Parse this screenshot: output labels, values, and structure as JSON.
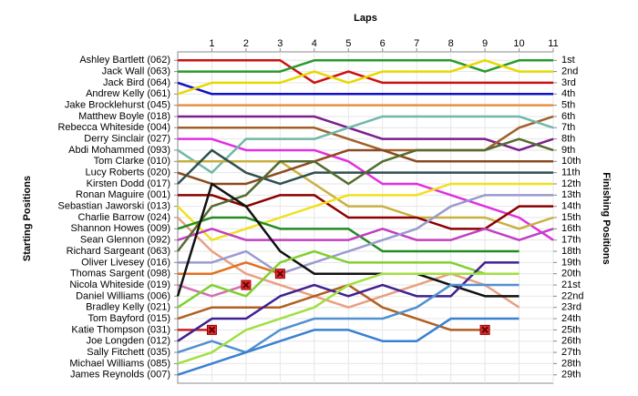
{
  "chart_data": {
    "type": "line",
    "x_label": "Laps",
    "y_label": "Starting Positions",
    "y2_label": "Finishing Positions",
    "x": [
      0,
      1,
      2,
      3,
      4,
      5,
      6,
      7,
      8,
      9,
      10,
      11
    ],
    "xlim": [
      0,
      11
    ],
    "xticks": [
      1,
      2,
      3,
      4,
      5,
      6,
      7,
      8,
      9,
      10,
      11
    ],
    "ylim": [
      29.75,
      0.25
    ],
    "y2lim": [
      29.75,
      0.25
    ],
    "grid": true,
    "yticks": [
      {
        "value": 1,
        "label": "Ashley Bartlett (062)"
      },
      {
        "value": 2,
        "label": "Jack Wall (063)"
      },
      {
        "value": 3,
        "label": "Jack Bird (064)"
      },
      {
        "value": 4,
        "label": "Andrew Kelly (061)"
      },
      {
        "value": 5,
        "label": "Jake Brocklehurst (045)"
      },
      {
        "value": 6,
        "label": "Matthew Boyle (018)"
      },
      {
        "value": 7,
        "label": "Rebecca Whiteside (004)"
      },
      {
        "value": 8,
        "label": "Derry Sinclair (027)"
      },
      {
        "value": 9,
        "label": "Abdi Mohammed (093)"
      },
      {
        "value": 10,
        "label": "Tom Clarke (010)"
      },
      {
        "value": 11,
        "label": "Lucy Roberts (020)"
      },
      {
        "value": 12,
        "label": "Kirsten Dodd (017)"
      },
      {
        "value": 13,
        "label": "Ronan Maguire (001)"
      },
      {
        "value": 14,
        "label": "Sebastian Jaworski (013)"
      },
      {
        "value": 15,
        "label": "Charlie Barrow (024)"
      },
      {
        "value": 16,
        "label": "Shannon Howes (009)"
      },
      {
        "value": 17,
        "label": "Sean Glennon (092)"
      },
      {
        "value": 18,
        "label": "Richard Sargeant (063)"
      },
      {
        "value": 19,
        "label": "Oliver Livesey (016)"
      },
      {
        "value": 20,
        "label": "Thomas Sargent (098)"
      },
      {
        "value": 21,
        "label": "Nicola Whiteside (019)"
      },
      {
        "value": 22,
        "label": "Daniel Williams (006)"
      },
      {
        "value": 23,
        "label": "Bradley Kelly (021)"
      },
      {
        "value": 24,
        "label": "Tom Bayford (015)"
      },
      {
        "value": 25,
        "label": "Katie Thompson (031)"
      },
      {
        "value": 26,
        "label": "Joe Longden (012)"
      },
      {
        "value": 27,
        "label": "Sally Fitchett (035)"
      },
      {
        "value": 28,
        "label": "Michael Williams (085)"
      },
      {
        "value": 29,
        "label": "James Reynolds (007)"
      }
    ],
    "y2ticks": [
      {
        "value": 1,
        "label": "1st"
      },
      {
        "value": 2,
        "label": "2nd"
      },
      {
        "value": 3,
        "label": "3rd"
      },
      {
        "value": 4,
        "label": "4th"
      },
      {
        "value": 5,
        "label": "5th"
      },
      {
        "value": 6,
        "label": "6th"
      },
      {
        "value": 7,
        "label": "7th"
      },
      {
        "value": 8,
        "label": "8th"
      },
      {
        "value": 9,
        "label": "9th"
      },
      {
        "value": 10,
        "label": "10th"
      },
      {
        "value": 11,
        "label": "11th"
      },
      {
        "value": 12,
        "label": "12th"
      },
      {
        "value": 13,
        "label": "13th"
      },
      {
        "value": 14,
        "label": "14th"
      },
      {
        "value": 15,
        "label": "15th"
      },
      {
        "value": 16,
        "label": "16th"
      },
      {
        "value": 17,
        "label": "17th"
      },
      {
        "value": 18,
        "label": "18th"
      },
      {
        "value": 19,
        "label": "19th"
      },
      {
        "value": 20,
        "label": "20th"
      },
      {
        "value": 21,
        "label": "21st"
      },
      {
        "value": 22,
        "label": "22nd"
      },
      {
        "value": 23,
        "label": "23rd"
      },
      {
        "value": 24,
        "label": "24th"
      },
      {
        "value": 25,
        "label": "25th"
      },
      {
        "value": 26,
        "label": "26th"
      },
      {
        "value": 27,
        "label": "27th"
      },
      {
        "value": 28,
        "label": "28th"
      },
      {
        "value": 29,
        "label": "29th"
      }
    ],
    "series": [
      {
        "color": "#cc1111",
        "values": [
          1,
          1,
          1,
          1,
          3,
          2,
          3,
          3,
          3,
          3,
          3,
          3
        ]
      },
      {
        "color": "#2a9a2a",
        "values": [
          2,
          2,
          2,
          2,
          1,
          1,
          1,
          1,
          1,
          2,
          1,
          1
        ]
      },
      {
        "color": "#1010c8",
        "values": [
          3,
          4,
          4,
          4,
          4,
          4,
          4,
          4,
          4,
          4,
          4,
          4
        ]
      },
      {
        "color": "#e8d800",
        "values": [
          4,
          3,
          3,
          3,
          2,
          3,
          2,
          2,
          2,
          1,
          2,
          2
        ]
      },
      {
        "color": "#e89040",
        "values": [
          5,
          5,
          5,
          5,
          5,
          5,
          5,
          5,
          5,
          5,
          5,
          5
        ]
      },
      {
        "color": "#7b1f8b",
        "values": [
          6,
          6,
          6,
          6,
          6,
          7,
          8,
          8,
          8,
          8,
          9,
          8
        ]
      },
      {
        "color": "#a0602a",
        "values": [
          7,
          7,
          7,
          7,
          7,
          8,
          9,
          9,
          9,
          9,
          7,
          6
        ]
      },
      {
        "color": "#e030e0",
        "values": [
          8,
          8,
          9,
          9,
          9,
          10,
          12,
          12,
          13,
          14,
          15,
          17
        ]
      },
      {
        "color": "#70b8a8",
        "values": [
          9,
          11,
          8,
          8,
          8,
          7,
          6,
          6,
          6,
          6,
          6,
          7
        ]
      },
      {
        "color": "#c8b040",
        "values": [
          10,
          10,
          10,
          10,
          12,
          14,
          14,
          15,
          15,
          15,
          16,
          15
        ]
      },
      {
        "color": "#8b4a20",
        "values": [
          11,
          12,
          12,
          11,
          10,
          9,
          9,
          10,
          10,
          10,
          10,
          10
        ]
      },
      {
        "color": "#2f4f4f",
        "values": [
          12,
          9,
          11,
          12,
          11,
          11,
          11,
          11,
          11,
          11,
          11,
          11
        ]
      },
      {
        "color": "#8b0000",
        "values": [
          13,
          13,
          14,
          13,
          13,
          15,
          15,
          15,
          16,
          16,
          14,
          14
        ]
      },
      {
        "color": "#f0e020",
        "values": [
          14,
          17,
          16,
          15,
          14,
          13,
          13,
          13,
          12,
          12,
          12,
          12
        ]
      },
      {
        "color": "#e8a080",
        "values": [
          15,
          18,
          20,
          21,
          22,
          23,
          22,
          21,
          20,
          21,
          23,
          null
        ]
      },
      {
        "color": "#228b22",
        "values": [
          16,
          15,
          15,
          16,
          16,
          16,
          18,
          18,
          18,
          18,
          18,
          null
        ]
      },
      {
        "color": "#c040c0",
        "values": [
          17,
          16,
          17,
          17,
          17,
          17,
          16,
          17,
          17,
          16,
          17,
          16
        ]
      },
      {
        "color": "#556b2f",
        "values": [
          18,
          14,
          13,
          10,
          10,
          12,
          10,
          9,
          9,
          9,
          8,
          9
        ]
      },
      {
        "color": "#9a9ad0",
        "values": [
          19,
          19,
          18,
          20,
          19,
          18,
          17,
          16,
          14,
          13,
          13,
          13
        ]
      },
      {
        "color": "#e07020",
        "values": [
          20,
          20,
          19,
          20,
          null,
          null,
          null,
          null,
          null,
          null,
          null,
          null
        ],
        "retired": true
      },
      {
        "color": "#d070b0",
        "values": [
          21,
          22,
          21,
          null,
          null,
          null,
          null,
          null,
          null,
          null,
          null,
          null
        ],
        "retired": true
      },
      {
        "color": "#111111",
        "values": [
          22,
          12,
          14,
          18,
          20,
          20,
          20,
          20,
          21,
          22,
          22,
          null
        ]
      },
      {
        "color": "#80d030",
        "values": [
          23,
          21,
          22,
          19,
          18,
          19,
          19,
          19,
          19,
          20,
          20,
          null
        ]
      },
      {
        "color": "#b06020",
        "values": [
          24,
          23,
          23,
          23,
          22,
          21,
          23,
          24,
          25,
          25,
          null,
          null
        ],
        "retired": true
      },
      {
        "color": "#cc2020",
        "values": [
          25,
          25,
          null,
          null,
          null,
          null,
          null,
          null,
          null,
          null,
          null,
          null
        ],
        "retired": true
      },
      {
        "color": "#402090",
        "values": [
          26,
          24,
          24,
          22,
          21,
          22,
          21,
          22,
          22,
          19,
          19,
          null
        ]
      },
      {
        "color": "#5090d0",
        "values": [
          27,
          26,
          27,
          25,
          24,
          24,
          24,
          23,
          21,
          21,
          21,
          null
        ]
      },
      {
        "color": "#a0e040",
        "values": [
          28,
          27,
          25,
          24,
          23,
          21,
          20,
          20,
          20,
          20,
          20,
          null
        ]
      },
      {
        "color": "#3a80d0",
        "values": [
          29,
          28,
          27,
          26,
          25,
          25,
          26,
          26,
          24,
          24,
          24,
          null
        ]
      }
    ]
  }
}
